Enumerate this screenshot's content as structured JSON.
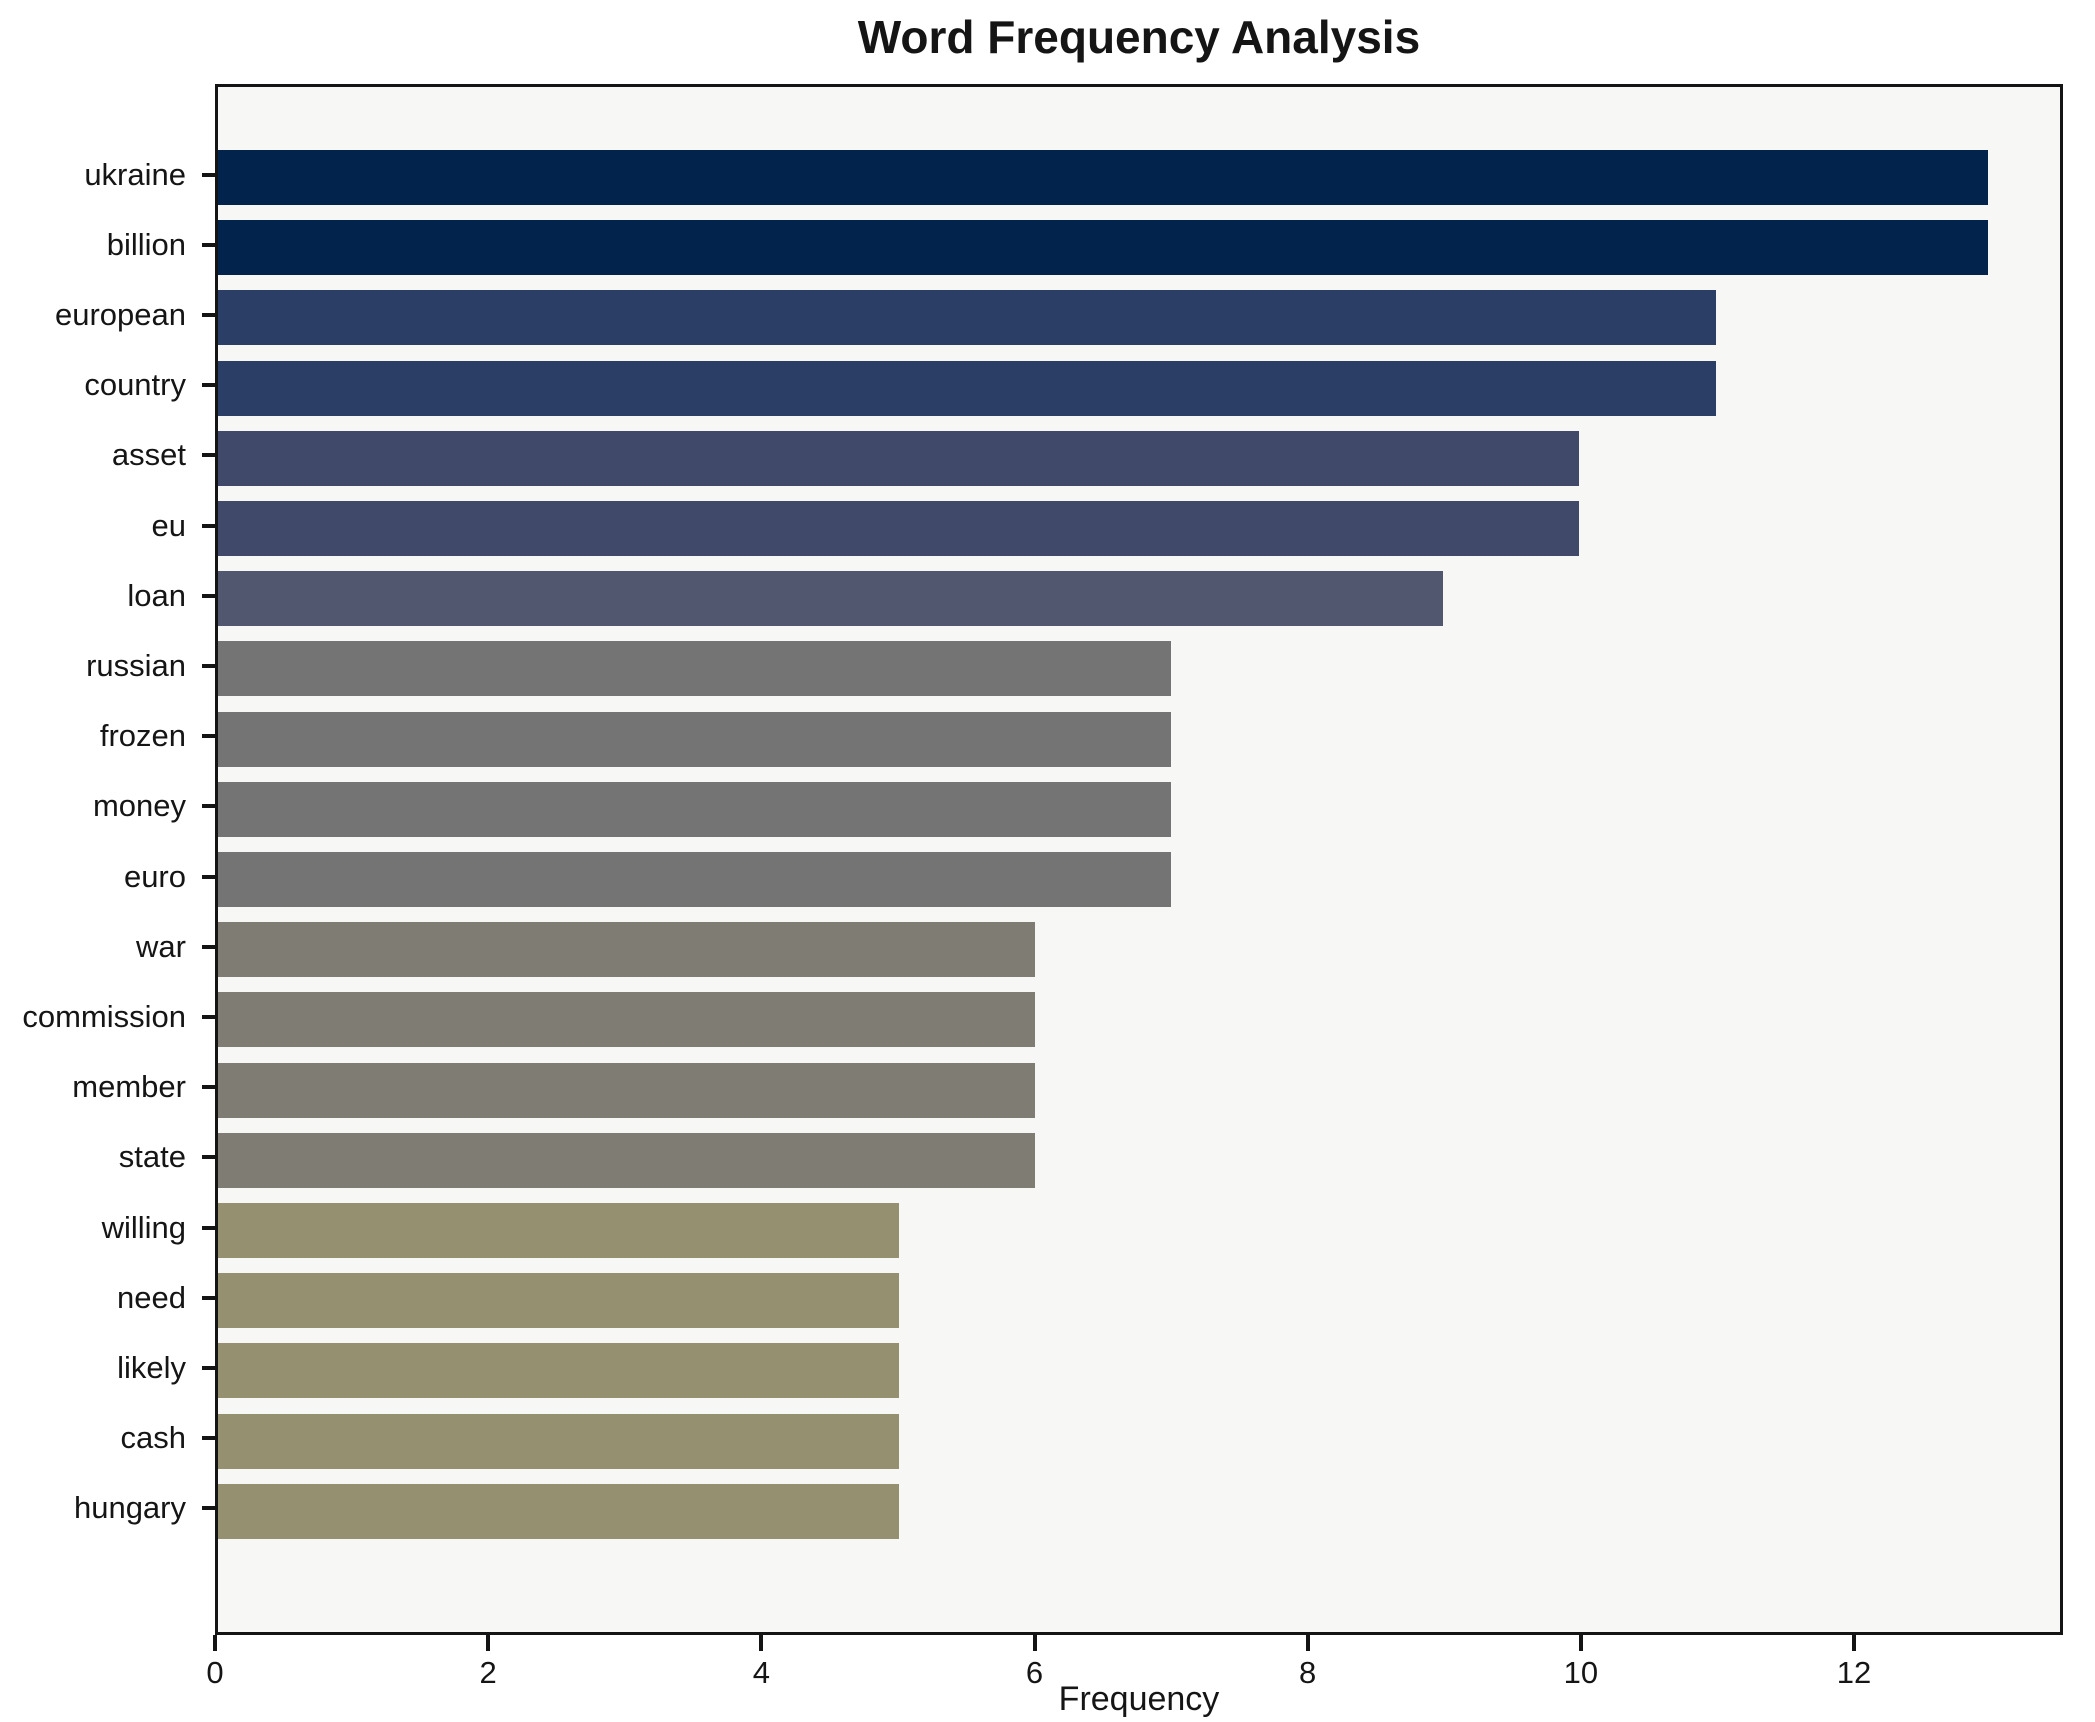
{
  "chart_data": {
    "type": "bar",
    "orientation": "horizontal",
    "title": "Word Frequency Analysis",
    "xlabel": "Frequency",
    "ylabel": "",
    "categories": [
      "ukraine",
      "billion",
      "european",
      "country",
      "asset",
      "eu",
      "loan",
      "russian",
      "frozen",
      "money",
      "euro",
      "war",
      "commission",
      "member",
      "state",
      "willing",
      "need",
      "likely",
      "cash",
      "hungary"
    ],
    "values": [
      13,
      13,
      11,
      11,
      10,
      10,
      9,
      7,
      7,
      7,
      7,
      6,
      6,
      6,
      6,
      5,
      5,
      5,
      5,
      5
    ],
    "colors": [
      "#02234c",
      "#02234c",
      "#2a3e66",
      "#2a3e66",
      "#41496b",
      "#41496b",
      "#525770",
      "#747474",
      "#747474",
      "#747474",
      "#747474",
      "#7f7d73",
      "#7f7d73",
      "#7f7d73",
      "#7f7d73",
      "#959070",
      "#959070",
      "#959070",
      "#959070",
      "#959070"
    ],
    "xlim": [
      0,
      13.53
    ],
    "xticks": [
      0,
      2,
      4,
      6,
      8,
      10,
      12
    ],
    "grid": false,
    "legend_position": "none",
    "plot_background": "#f7f7f5",
    "figure_background": "#ffffff",
    "spine_color": "#141414",
    "bar_color_scheme": "cividis"
  }
}
